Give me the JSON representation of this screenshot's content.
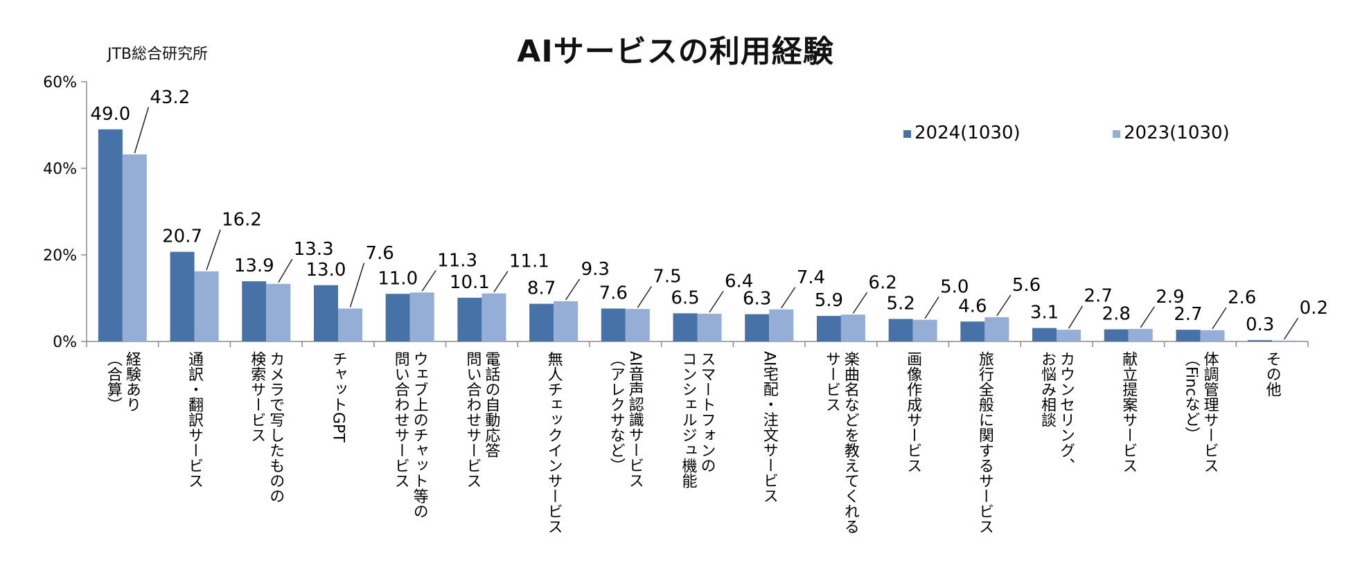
{
  "source": "JTB総合研究所",
  "chart_data": {
    "type": "bar",
    "title": "AIサービスの利用経験",
    "xlabel": "",
    "ylabel": "",
    "ylim": [
      0,
      60
    ],
    "yticks": [
      "0%",
      "20%",
      "40%",
      "60%"
    ],
    "ytick_values": [
      0,
      20,
      40,
      60
    ],
    "legend_position": "top-right",
    "categories": [
      [
        "経験あり",
        "（合算）"
      ],
      [
        "通訳・翻訳サービス"
      ],
      [
        "カメラで写したものの",
        "検索サービス"
      ],
      [
        "チャットGPT"
      ],
      [
        "ウェブ上のチャット等の",
        "問い合わせサービス"
      ],
      [
        "電話の自動応答",
        "問い合わせサービス"
      ],
      [
        "無人チェックインサービス"
      ],
      [
        "AI音声認識サービス",
        "（アレクサなど）"
      ],
      [
        "スマートフォンの",
        "コンシェルジュ機能"
      ],
      [
        "AI宅配・注文サービス"
      ],
      [
        "楽曲名などを教えてくれる",
        "サービス"
      ],
      [
        "画像作成サービス"
      ],
      [
        "旅行全般に関するサービス"
      ],
      [
        "カウンセリング、",
        "お悩み相談"
      ],
      [
        "献立提案サービス"
      ],
      [
        "体調管理サービス",
        "（Fincなど）"
      ],
      [
        "その他"
      ]
    ],
    "series": [
      {
        "name": "2024(1030)",
        "color": "#4672a8",
        "values": [
          49.0,
          20.7,
          13.9,
          13.0,
          11.0,
          10.1,
          8.7,
          7.6,
          6.5,
          6.3,
          5.9,
          5.2,
          4.6,
          3.1,
          2.8,
          2.7,
          0.3
        ],
        "labels": [
          "49.0",
          "20.7",
          "13.9",
          "13.0",
          "11.0",
          "10.1",
          "8.7",
          "7.6",
          "6.5",
          "6.3",
          "5.9",
          "5.2",
          "4.6",
          "3.1",
          "2.8",
          "2.7",
          "0.3"
        ]
      },
      {
        "name": "2023(1030)",
        "color": "#94aed6",
        "values": [
          43.2,
          16.2,
          13.3,
          7.6,
          11.3,
          11.1,
          9.3,
          7.5,
          6.4,
          7.4,
          6.2,
          5.0,
          5.6,
          2.7,
          2.9,
          2.6,
          0.2
        ],
        "labels": [
          "43.2",
          "16.2",
          "13.3",
          "7.6",
          "11.3",
          "11.1",
          "9.3",
          "7.5",
          "6.4",
          "7.4",
          "6.2",
          "5.0",
          "5.6",
          "2.7",
          "2.9",
          "2.6",
          "0.2"
        ]
      }
    ]
  }
}
